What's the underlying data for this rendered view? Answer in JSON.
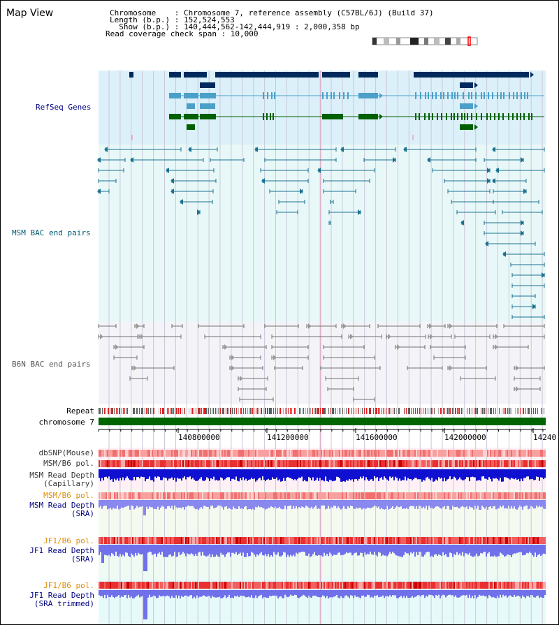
{
  "title": "Map View",
  "header": {
    "chromosome_line": "Chromosome    : Chromosome 7, reference assembly (C57BL/6J) (Build 37)",
    "length_line": "Length (b.p.) : 152,524,553",
    "show_line": "  Show (b.p.) : 140,444,562-142,444,919 : 2,000,358 bp",
    "coverage_line": "Read coverage check span : 10,000"
  },
  "tracks": {
    "refseq": "RefSeq Genes",
    "msm_bac": "MSM BAC end pairs",
    "b6n_bac": "B6N BAC end pairs",
    "repeat": "Repeat",
    "chromosome": "chromosome 7"
  },
  "axis": {
    "ticks": [
      "140800000",
      "141200000",
      "141600000",
      "142000000",
      "14240"
    ]
  },
  "lower_tracks": {
    "dbsnp": "dbSNP(Mouse)",
    "msm_b6_pol": "MSM/B6 pol.",
    "msm_depth_cap_1": "MSM Read Depth",
    "msm_depth_cap_2": "(Capillary)",
    "msm_b6_pol_2": "MSM/B6 pol.",
    "msm_depth_sra_1": "MSM Read Depth",
    "msm_depth_sra_2": "(SRA)",
    "jf1_b6_pol": "JF1/B6 pol.",
    "jf1_depth_sra_1": "JF1 Read Depth",
    "jf1_depth_sra_2": "(SRA)",
    "jf1_b6_pol_2": "JF1/B6 pol.",
    "jf1_depth_trim_1": "JF1 Read Depth",
    "jf1_depth_trim_2": "(SRA trimmed)"
  },
  "colors": {
    "refseq_bg": "#dcf0fa",
    "msm_bg": "#e8f8f8",
    "b6n_bg": "#f4f4f8",
    "gene_navy": "#002a5c",
    "gene_lightblue": "#4aa0c8",
    "gene_green": "#006000",
    "chromosome_green": "#006400",
    "msm_line": "#1a7090",
    "b6n_line": "#707070"
  }
}
